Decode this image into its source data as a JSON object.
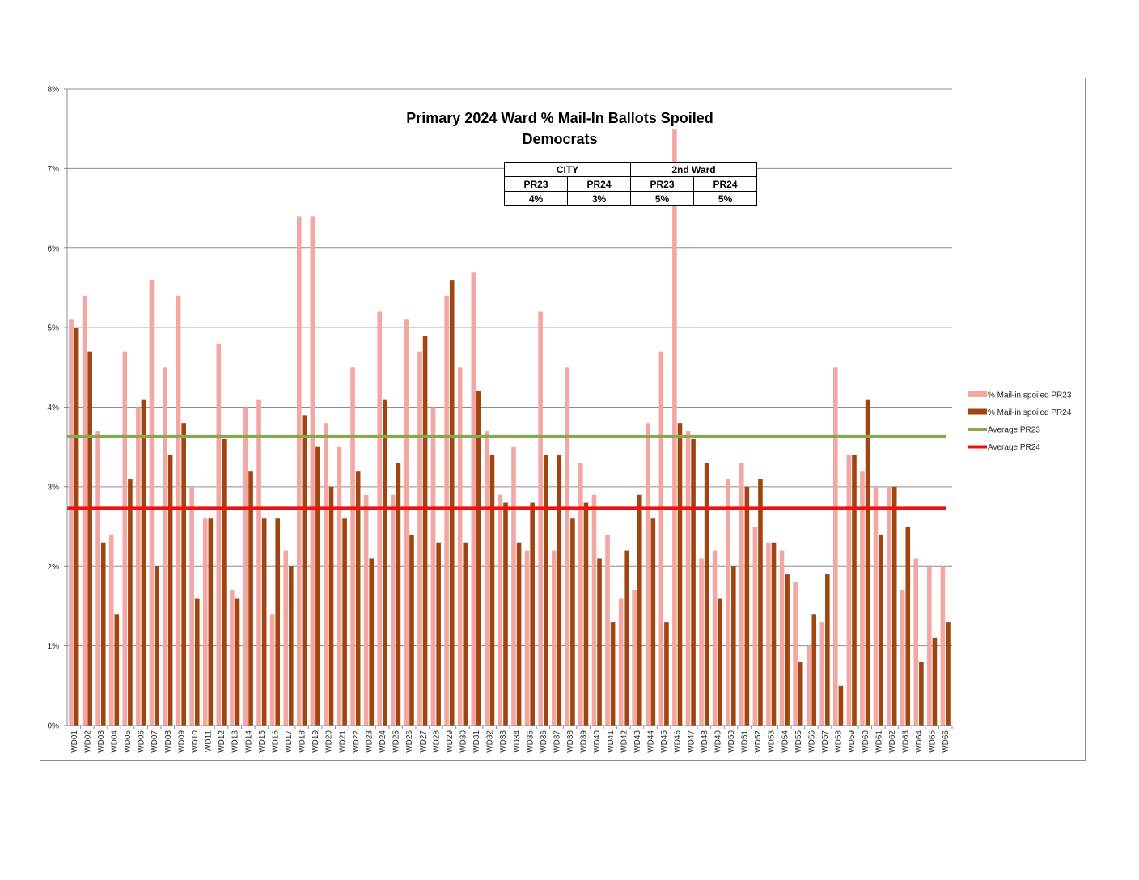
{
  "chart_data": {
    "type": "bar",
    "title": "Primary 2024 Ward % Mail-In Ballots Spoiled",
    "subtitle": "Democrats",
    "ylim": [
      0,
      8
    ],
    "y_ticks": [
      "0%",
      "1%",
      "2%",
      "3%",
      "4%",
      "5%",
      "6%",
      "7%",
      "8%"
    ],
    "grid": true,
    "legend_position": "right",
    "categories": [
      "WD01",
      "WD02",
      "WD03",
      "WD04",
      "WD05",
      "WD06",
      "WD07",
      "WD08",
      "WD09",
      "WD10",
      "WD11",
      "WD12",
      "WD13",
      "WD14",
      "WD15",
      "WD16",
      "WD17",
      "WD18",
      "WD19",
      "WD20",
      "WD21",
      "WD22",
      "WD23",
      "WD24",
      "WD25",
      "WD26",
      "WD27",
      "WD28",
      "WD29",
      "WD30",
      "WD31",
      "WD32",
      "WD33",
      "WD34",
      "WD35",
      "WD36",
      "WD37",
      "WD38",
      "WD39",
      "WD40",
      "WD41",
      "WD42",
      "WD43",
      "WD44",
      "WD45",
      "WD46",
      "WD47",
      "WD48",
      "WD49",
      "WD50",
      "WD51",
      "WD52",
      "WD53",
      "WD54",
      "WD55",
      "WD56",
      "WD57",
      "WD58",
      "WD59",
      "WD60",
      "WD61",
      "WD62",
      "WD63",
      "WD64",
      "WD65",
      "WD66"
    ],
    "series": [
      {
        "name": "% Mail-in spoiled PR23",
        "color": "#f4a6a2",
        "values": [
          5.1,
          5.4,
          3.7,
          2.4,
          4.7,
          4.0,
          5.6,
          4.5,
          5.4,
          3.0,
          2.6,
          4.8,
          1.7,
          4.0,
          4.1,
          1.4,
          2.2,
          6.4,
          6.4,
          3.8,
          3.5,
          4.5,
          2.9,
          5.2,
          2.9,
          5.1,
          4.7,
          4.0,
          5.4,
          4.5,
          5.7,
          3.7,
          2.9,
          3.5,
          2.2,
          5.2,
          2.2,
          4.5,
          3.3,
          2.9,
          2.4,
          1.6,
          1.7,
          3.8,
          4.7,
          7.5,
          3.7,
          2.1,
          2.2,
          3.1,
          3.3,
          2.5,
          2.3,
          2.2,
          1.8,
          1.0,
          1.3,
          4.5,
          3.4,
          3.2,
          3.0,
          3.0,
          1.7,
          2.1,
          2.0,
          2.0
        ]
      },
      {
        "name": "% Mail-in spoiled PR24",
        "color": "#a0450f",
        "values": [
          5.0,
          4.7,
          2.3,
          1.4,
          3.1,
          4.1,
          2.0,
          3.4,
          3.8,
          1.6,
          2.6,
          3.6,
          1.6,
          3.2,
          2.6,
          2.6,
          2.0,
          3.9,
          3.5,
          3.0,
          2.6,
          3.2,
          2.1,
          4.1,
          3.3,
          2.4,
          4.9,
          2.3,
          5.6,
          2.3,
          4.2,
          3.4,
          2.8,
          2.3,
          2.8,
          3.4,
          3.4,
          2.6,
          2.8,
          2.1,
          1.3,
          2.2,
          2.9,
          2.6,
          1.3,
          3.8,
          3.6,
          3.3,
          1.6,
          2.0,
          3.0,
          3.1,
          2.3,
          1.9,
          0.8,
          1.4,
          1.9,
          0.5,
          3.4,
          4.1,
          2.4,
          3.0,
          2.5,
          0.8,
          1.1,
          1.3
        ]
      }
    ],
    "reference_lines": [
      {
        "name": "Average PR23",
        "value": 3.63,
        "color": "#86a94c"
      },
      {
        "name": "Average PR24",
        "value": 2.73,
        "color": "#ee1111"
      }
    ]
  },
  "summary_table": {
    "group_city": "CITY",
    "group_ward": "2nd Ward",
    "headers": [
      "PR23",
      "PR24",
      "PR23",
      "PR24"
    ],
    "values": [
      "4%",
      "3%",
      "5%",
      "5%"
    ]
  }
}
